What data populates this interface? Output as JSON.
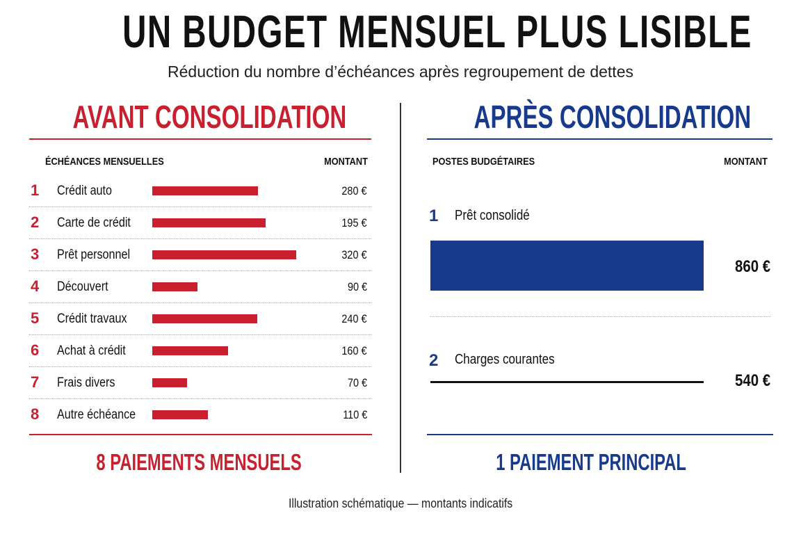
{
  "header": {
    "title": "UN BUDGET MENSUEL PLUS LISIBLE",
    "subtitle": "Réduction du nombre d’échéances après regroupement de dettes"
  },
  "before": {
    "title": "AVANT CONSOLIDATION",
    "columns": [
      "ÉCHÉANCES MENSUELLES",
      "MONTANT"
    ],
    "rows": [
      {
        "number": "1",
        "label": "Crédit auto",
        "amount": "280 €"
      },
      {
        "number": "2",
        "label": "Carte de crédit",
        "amount": "195 €"
      },
      {
        "number": "3",
        "label": "Prêt personnel",
        "amount": "320 €"
      },
      {
        "number": "4",
        "label": "Découvert",
        "amount": "90 €"
      },
      {
        "number": "5",
        "label": "Crédit travaux",
        "amount": "240 €"
      },
      {
        "number": "6",
        "label": "Achat à crédit",
        "amount": "160 €"
      },
      {
        "number": "7",
        "label": "Frais divers",
        "amount": "70 €"
      },
      {
        "number": "8",
        "label": "Autre échéance",
        "amount": "110 €"
      }
    ],
    "summary": "8 PAIEMENTS MENSUELS"
  },
  "after": {
    "title": "APRÈS CONSOLIDATION",
    "columns": [
      "POSTES BUDGÉTAIRES",
      "MONTANT"
    ],
    "rows": [
      {
        "number": "1",
        "label": "Prêt consolidé",
        "amount": "860 €"
      },
      {
        "number": "2",
        "label": "Charges courantes",
        "amount": "540 €"
      }
    ],
    "summary": "1 PAIEMENT PRINCIPAL"
  },
  "footer": "Illustration schématique — montants indicatifs"
}
